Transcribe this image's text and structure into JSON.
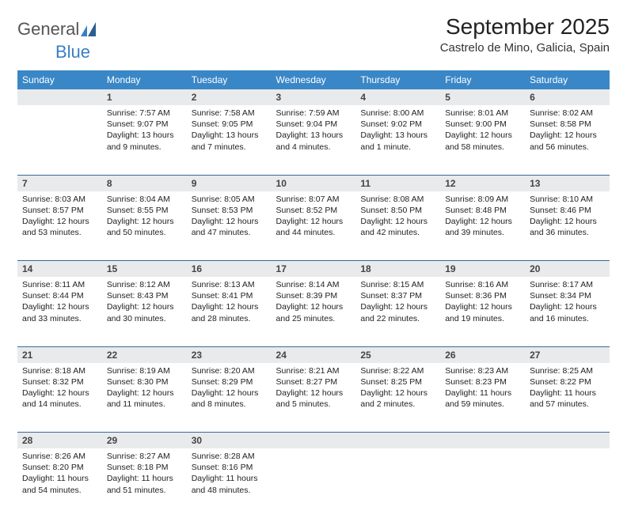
{
  "brand": {
    "word1": "General",
    "word2": "Blue"
  },
  "title": "September 2025",
  "location": "Castrelo de Mino, Galicia, Spain",
  "colors": {
    "header_bg": "#3a87c7",
    "header_text": "#ffffff",
    "daynum_bg": "#e9eaeb",
    "rule": "#3a6a98",
    "brand_blue": "#3a7fc4"
  },
  "dayHeaders": [
    "Sunday",
    "Monday",
    "Tuesday",
    "Wednesday",
    "Thursday",
    "Friday",
    "Saturday"
  ],
  "weeks": [
    [
      {
        "num": "",
        "sunrise": "",
        "sunset": "",
        "daylight": ""
      },
      {
        "num": "1",
        "sunrise": "Sunrise: 7:57 AM",
        "sunset": "Sunset: 9:07 PM",
        "daylight": "Daylight: 13 hours and 9 minutes."
      },
      {
        "num": "2",
        "sunrise": "Sunrise: 7:58 AM",
        "sunset": "Sunset: 9:05 PM",
        "daylight": "Daylight: 13 hours and 7 minutes."
      },
      {
        "num": "3",
        "sunrise": "Sunrise: 7:59 AM",
        "sunset": "Sunset: 9:04 PM",
        "daylight": "Daylight: 13 hours and 4 minutes."
      },
      {
        "num": "4",
        "sunrise": "Sunrise: 8:00 AM",
        "sunset": "Sunset: 9:02 PM",
        "daylight": "Daylight: 13 hours and 1 minute."
      },
      {
        "num": "5",
        "sunrise": "Sunrise: 8:01 AM",
        "sunset": "Sunset: 9:00 PM",
        "daylight": "Daylight: 12 hours and 58 minutes."
      },
      {
        "num": "6",
        "sunrise": "Sunrise: 8:02 AM",
        "sunset": "Sunset: 8:58 PM",
        "daylight": "Daylight: 12 hours and 56 minutes."
      }
    ],
    [
      {
        "num": "7",
        "sunrise": "Sunrise: 8:03 AM",
        "sunset": "Sunset: 8:57 PM",
        "daylight": "Daylight: 12 hours and 53 minutes."
      },
      {
        "num": "8",
        "sunrise": "Sunrise: 8:04 AM",
        "sunset": "Sunset: 8:55 PM",
        "daylight": "Daylight: 12 hours and 50 minutes."
      },
      {
        "num": "9",
        "sunrise": "Sunrise: 8:05 AM",
        "sunset": "Sunset: 8:53 PM",
        "daylight": "Daylight: 12 hours and 47 minutes."
      },
      {
        "num": "10",
        "sunrise": "Sunrise: 8:07 AM",
        "sunset": "Sunset: 8:52 PM",
        "daylight": "Daylight: 12 hours and 44 minutes."
      },
      {
        "num": "11",
        "sunrise": "Sunrise: 8:08 AM",
        "sunset": "Sunset: 8:50 PM",
        "daylight": "Daylight: 12 hours and 42 minutes."
      },
      {
        "num": "12",
        "sunrise": "Sunrise: 8:09 AM",
        "sunset": "Sunset: 8:48 PM",
        "daylight": "Daylight: 12 hours and 39 minutes."
      },
      {
        "num": "13",
        "sunrise": "Sunrise: 8:10 AM",
        "sunset": "Sunset: 8:46 PM",
        "daylight": "Daylight: 12 hours and 36 minutes."
      }
    ],
    [
      {
        "num": "14",
        "sunrise": "Sunrise: 8:11 AM",
        "sunset": "Sunset: 8:44 PM",
        "daylight": "Daylight: 12 hours and 33 minutes."
      },
      {
        "num": "15",
        "sunrise": "Sunrise: 8:12 AM",
        "sunset": "Sunset: 8:43 PM",
        "daylight": "Daylight: 12 hours and 30 minutes."
      },
      {
        "num": "16",
        "sunrise": "Sunrise: 8:13 AM",
        "sunset": "Sunset: 8:41 PM",
        "daylight": "Daylight: 12 hours and 28 minutes."
      },
      {
        "num": "17",
        "sunrise": "Sunrise: 8:14 AM",
        "sunset": "Sunset: 8:39 PM",
        "daylight": "Daylight: 12 hours and 25 minutes."
      },
      {
        "num": "18",
        "sunrise": "Sunrise: 8:15 AM",
        "sunset": "Sunset: 8:37 PM",
        "daylight": "Daylight: 12 hours and 22 minutes."
      },
      {
        "num": "19",
        "sunrise": "Sunrise: 8:16 AM",
        "sunset": "Sunset: 8:36 PM",
        "daylight": "Daylight: 12 hours and 19 minutes."
      },
      {
        "num": "20",
        "sunrise": "Sunrise: 8:17 AM",
        "sunset": "Sunset: 8:34 PM",
        "daylight": "Daylight: 12 hours and 16 minutes."
      }
    ],
    [
      {
        "num": "21",
        "sunrise": "Sunrise: 8:18 AM",
        "sunset": "Sunset: 8:32 PM",
        "daylight": "Daylight: 12 hours and 14 minutes."
      },
      {
        "num": "22",
        "sunrise": "Sunrise: 8:19 AM",
        "sunset": "Sunset: 8:30 PM",
        "daylight": "Daylight: 12 hours and 11 minutes."
      },
      {
        "num": "23",
        "sunrise": "Sunrise: 8:20 AM",
        "sunset": "Sunset: 8:29 PM",
        "daylight": "Daylight: 12 hours and 8 minutes."
      },
      {
        "num": "24",
        "sunrise": "Sunrise: 8:21 AM",
        "sunset": "Sunset: 8:27 PM",
        "daylight": "Daylight: 12 hours and 5 minutes."
      },
      {
        "num": "25",
        "sunrise": "Sunrise: 8:22 AM",
        "sunset": "Sunset: 8:25 PM",
        "daylight": "Daylight: 12 hours and 2 minutes."
      },
      {
        "num": "26",
        "sunrise": "Sunrise: 8:23 AM",
        "sunset": "Sunset: 8:23 PM",
        "daylight": "Daylight: 11 hours and 59 minutes."
      },
      {
        "num": "27",
        "sunrise": "Sunrise: 8:25 AM",
        "sunset": "Sunset: 8:22 PM",
        "daylight": "Daylight: 11 hours and 57 minutes."
      }
    ],
    [
      {
        "num": "28",
        "sunrise": "Sunrise: 8:26 AM",
        "sunset": "Sunset: 8:20 PM",
        "daylight": "Daylight: 11 hours and 54 minutes."
      },
      {
        "num": "29",
        "sunrise": "Sunrise: 8:27 AM",
        "sunset": "Sunset: 8:18 PM",
        "daylight": "Daylight: 11 hours and 51 minutes."
      },
      {
        "num": "30",
        "sunrise": "Sunrise: 8:28 AM",
        "sunset": "Sunset: 8:16 PM",
        "daylight": "Daylight: 11 hours and 48 minutes."
      },
      {
        "num": "",
        "sunrise": "",
        "sunset": "",
        "daylight": ""
      },
      {
        "num": "",
        "sunrise": "",
        "sunset": "",
        "daylight": ""
      },
      {
        "num": "",
        "sunrise": "",
        "sunset": "",
        "daylight": ""
      },
      {
        "num": "",
        "sunrise": "",
        "sunset": "",
        "daylight": ""
      }
    ]
  ]
}
